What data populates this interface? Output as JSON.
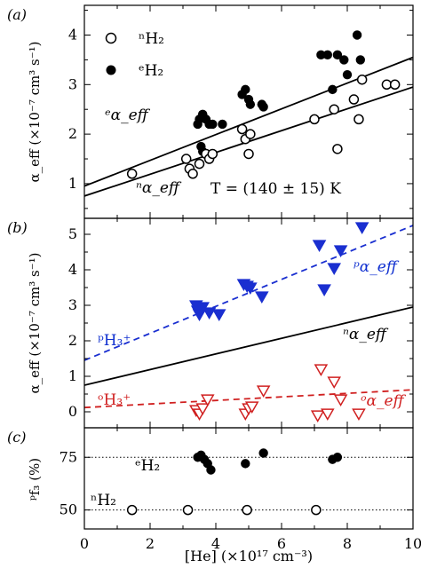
{
  "chart_data": [
    {
      "type": "scatter",
      "panel_label": "(a)",
      "ylabel": "α_eff (×10⁻⁷ cm³ s⁻¹)",
      "xlim": [
        0,
        10
      ],
      "ylim": [
        0.3,
        4.6
      ],
      "yticks": [
        1,
        2,
        3,
        4
      ],
      "annotation": "T = (140 ± 15) K",
      "legend": [
        {
          "marker": "open-circle",
          "label": "ⁿH₂"
        },
        {
          "marker": "filled-circle",
          "label": "ᵉH₂"
        }
      ],
      "line_labels": [
        {
          "text": "ᵉα_eff",
          "series": "e-fit"
        },
        {
          "text": "ⁿα_eff",
          "series": "n-fit"
        }
      ],
      "series": [
        {
          "name": "ᵉH₂",
          "marker": "filled-circle",
          "color": "#000000",
          "x": [
            3.45,
            3.5,
            3.6,
            3.7,
            3.8,
            3.55,
            3.6,
            3.9,
            4.2,
            4.8,
            4.9,
            5.0,
            5.05,
            5.4,
            5.45,
            7.2,
            7.4,
            7.55,
            7.7,
            7.9,
            8.0,
            8.3,
            8.4
          ],
          "y": [
            2.2,
            2.3,
            2.4,
            2.3,
            2.2,
            1.75,
            1.65,
            2.2,
            2.2,
            2.8,
            2.9,
            2.7,
            2.6,
            2.6,
            2.55,
            3.6,
            3.6,
            2.9,
            3.6,
            3.5,
            3.2,
            4.0,
            3.5
          ]
        },
        {
          "name": "ⁿH₂",
          "marker": "open-circle",
          "color": "#000000",
          "x": [
            1.45,
            3.1,
            3.2,
            3.3,
            3.5,
            3.7,
            3.8,
            3.9,
            4.8,
            4.9,
            5.0,
            5.05,
            7.0,
            7.6,
            7.7,
            8.2,
            8.35,
            8.45,
            9.2,
            9.45
          ],
          "y": [
            1.2,
            1.5,
            1.3,
            1.2,
            1.4,
            1.6,
            1.5,
            1.6,
            2.1,
            1.9,
            1.6,
            2.0,
            2.3,
            2.5,
            1.7,
            2.7,
            2.3,
            3.1,
            3.0,
            3.0
          ]
        },
        {
          "name": "e-fit",
          "kind": "line",
          "style": "solid",
          "color": "#000000",
          "x": [
            0,
            10
          ],
          "y": [
            0.95,
            3.55
          ]
        },
        {
          "name": "n-fit",
          "kind": "line",
          "style": "solid",
          "color": "#000000",
          "x": [
            0,
            10
          ],
          "y": [
            0.75,
            2.95
          ]
        }
      ]
    },
    {
      "type": "scatter",
      "panel_label": "(b)",
      "ylabel": "α_eff (×10⁻⁷ cm³ s⁻¹)",
      "xlim": [
        0,
        10
      ],
      "ylim": [
        -0.45,
        5.45
      ],
      "yticks": [
        0,
        1,
        2,
        3,
        4,
        5
      ],
      "line_labels": [
        {
          "text": "ᵖα_eff",
          "color": "#1030d0"
        },
        {
          "text": "ⁿα_eff",
          "color": "#000000"
        },
        {
          "text": "ᵒα_eff",
          "color": "#d02020"
        },
        {
          "text": "ᵖH₃⁺",
          "color": "#1030d0"
        },
        {
          "text": "ᵒH₃⁺",
          "color": "#d02020"
        }
      ],
      "series": [
        {
          "name": "ᵖH₃⁺",
          "marker": "filled-triangle-down",
          "color": "#1a2fd0",
          "x": [
            3.4,
            3.45,
            3.5,
            3.6,
            3.8,
            4.1,
            4.85,
            4.95,
            5.05,
            5.4,
            7.15,
            7.3,
            7.6,
            7.8,
            8.45
          ],
          "y": [
            3.0,
            2.85,
            2.75,
            2.95,
            2.8,
            2.75,
            3.6,
            3.55,
            3.5,
            3.25,
            4.7,
            3.45,
            4.05,
            4.55,
            5.2
          ]
        },
        {
          "name": "ᵒH₃⁺",
          "marker": "open-triangle-down",
          "color": "#d02020",
          "x": [
            3.4,
            3.5,
            3.6,
            3.75,
            4.9,
            5.0,
            5.1,
            5.45,
            7.1,
            7.2,
            7.4,
            7.6,
            7.8,
            8.35
          ],
          "y": [
            0.05,
            -0.05,
            0.1,
            0.35,
            -0.05,
            0.1,
            0.15,
            0.6,
            -0.1,
            1.2,
            -0.05,
            0.85,
            0.35,
            -0.05
          ]
        },
        {
          "name": "p-fit",
          "kind": "line",
          "style": "dashed",
          "color": "#1a2fd0",
          "x": [
            0,
            10
          ],
          "y": [
            1.45,
            5.25
          ]
        },
        {
          "name": "n-fit",
          "kind": "line",
          "style": "solid",
          "color": "#000000",
          "x": [
            0,
            10
          ],
          "y": [
            0.75,
            2.95
          ]
        },
        {
          "name": "o-fit",
          "kind": "line",
          "style": "dashed",
          "color": "#d02020",
          "x": [
            0,
            10
          ],
          "y": [
            0.12,
            0.62
          ]
        }
      ]
    },
    {
      "type": "scatter",
      "panel_label": "(c)",
      "ylabel": "ᵖf₃ (%)",
      "xlabel": "[He] (×10¹⁷ cm⁻³)",
      "xlim": [
        0,
        10
      ],
      "ylim": [
        41,
        89
      ],
      "xticks": [
        0,
        2,
        4,
        6,
        8,
        10
      ],
      "yticks": [
        50,
        75
      ],
      "line_labels": [
        {
          "text": "ᵉH₂",
          "series": "e-ref"
        },
        {
          "text": "ⁿH₂",
          "series": "n-ref"
        }
      ],
      "series": [
        {
          "name": "ᵉH₂",
          "marker": "filled-circle",
          "color": "#000000",
          "x": [
            3.45,
            3.55,
            3.65,
            3.75,
            3.85,
            4.9,
            5.45,
            7.55,
            7.7
          ],
          "y": [
            75,
            76,
            74,
            72,
            69,
            72,
            77,
            74,
            75
          ]
        },
        {
          "name": "ⁿH₂",
          "marker": "open-circle",
          "color": "#000000",
          "x": [
            1.45,
            3.15,
            4.95,
            7.05
          ],
          "y": [
            50,
            50,
            50,
            50
          ]
        },
        {
          "name": "e-ref",
          "kind": "line",
          "style": "dotted",
          "color": "#000000",
          "x": [
            0,
            10
          ],
          "y": [
            75,
            75
          ]
        },
        {
          "name": "n-ref",
          "kind": "line",
          "style": "dotted",
          "color": "#000000",
          "x": [
            0,
            10
          ],
          "y": [
            50,
            50
          ]
        }
      ]
    }
  ]
}
